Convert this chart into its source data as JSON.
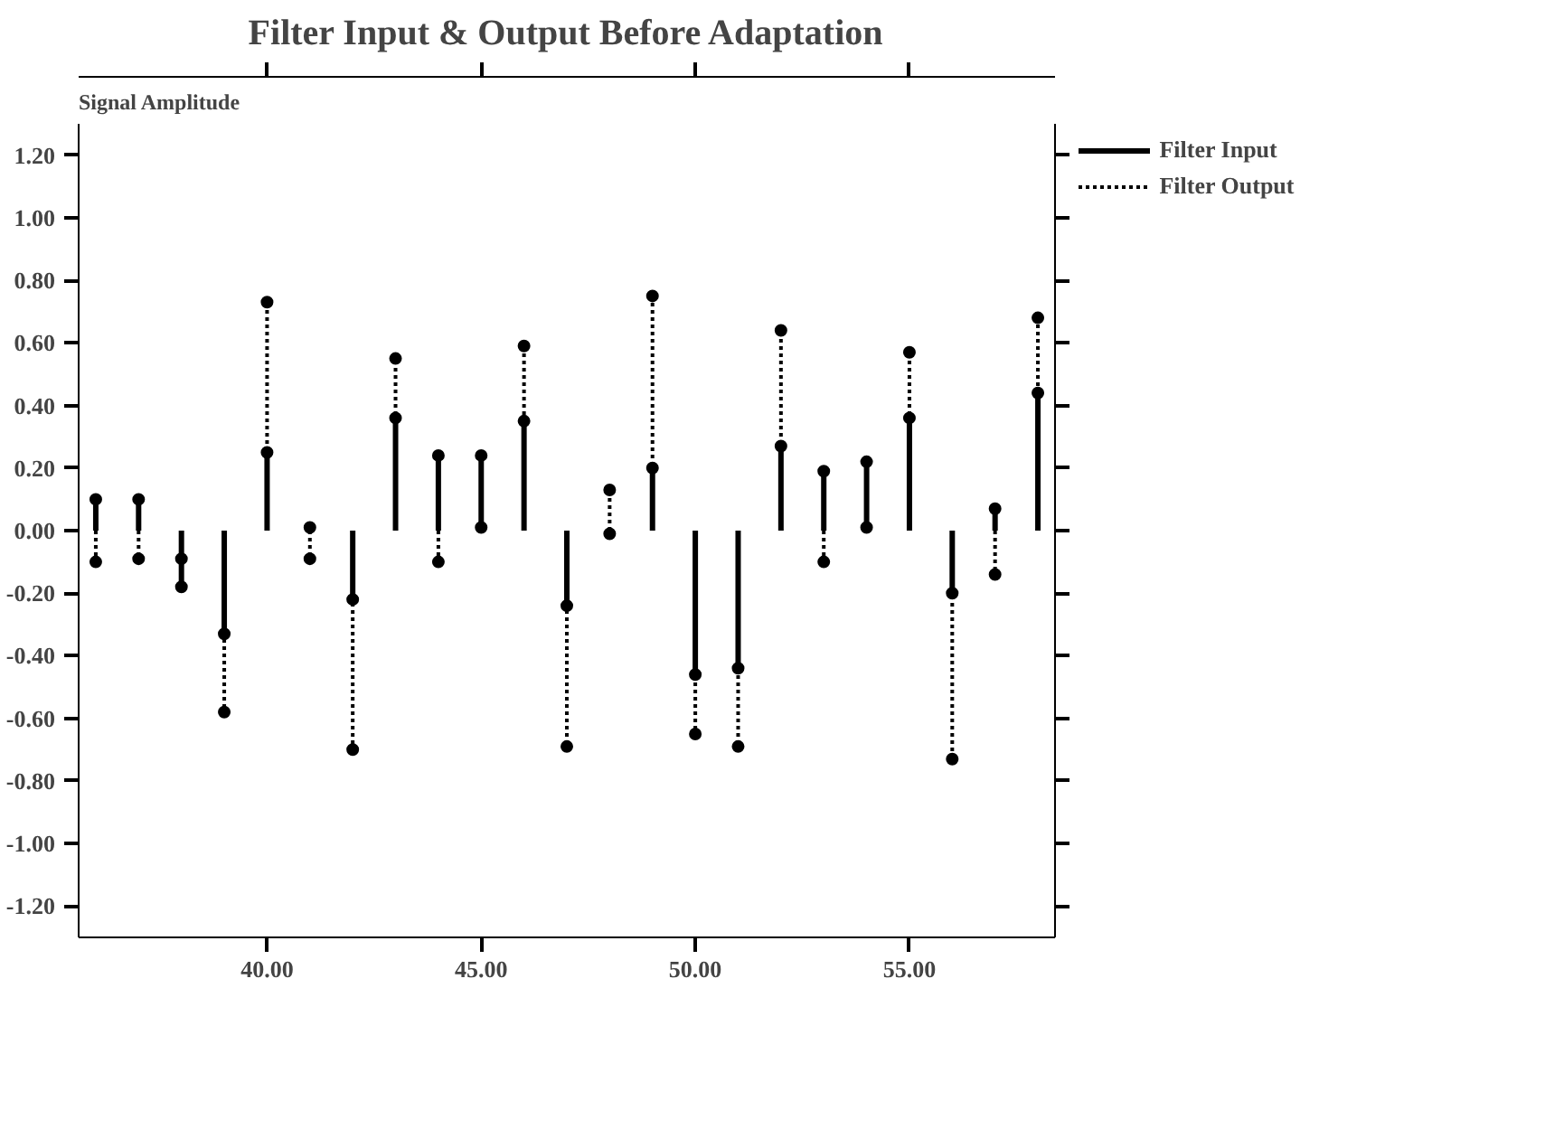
{
  "chart_data": {
    "type": "lollipop",
    "title": "Filter Input & Output Before Adaptation",
    "ylabel": "Signal Amplitude",
    "x": [
      36,
      37,
      38,
      39,
      40,
      41,
      42,
      43,
      44,
      45,
      46,
      47,
      48,
      49,
      50,
      51,
      52,
      53,
      54,
      55,
      56,
      57,
      58
    ],
    "series": [
      {
        "name": "Filter Input",
        "color": "#000000",
        "line_style": "solid",
        "values": [
          0.1,
          0.1,
          -0.18,
          -0.33,
          0.25,
          0.01,
          -0.22,
          0.36,
          0.24,
          0.24,
          0.35,
          -0.24,
          -0.01,
          0.2,
          -0.46,
          -0.44,
          0.27,
          0.19,
          0.22,
          0.36,
          -0.2,
          0.07,
          0.44
        ]
      },
      {
        "name": "Filter Output",
        "color": "#000000",
        "line_style": "dotted",
        "values": [
          -0.1,
          -0.09,
          -0.09,
          -0.58,
          0.73,
          -0.09,
          -0.7,
          0.55,
          -0.1,
          0.01,
          0.59,
          -0.69,
          0.13,
          0.75,
          -0.65,
          -0.69,
          0.64,
          -0.1,
          0.01,
          0.57,
          -0.73,
          -0.14,
          0.68
        ]
      }
    ],
    "marker": "circle",
    "xlim": [
      35.6,
      58.4
    ],
    "ylim": [
      -1.3,
      1.3
    ],
    "xticks": [
      {
        "value": 40,
        "label": "40.00"
      },
      {
        "value": 45,
        "label": "45.00"
      },
      {
        "value": 50,
        "label": "50.00"
      },
      {
        "value": 55,
        "label": "55.00"
      }
    ],
    "yticks": [
      {
        "value": -1.2,
        "label": "-1.20"
      },
      {
        "value": -1.0,
        "label": "-1.00"
      },
      {
        "value": -0.8,
        "label": "-0.80"
      },
      {
        "value": -0.6,
        "label": "-0.60"
      },
      {
        "value": -0.4,
        "label": "-0.40"
      },
      {
        "value": -0.2,
        "label": "-0.20"
      },
      {
        "value": 0,
        "label": "0.00"
      },
      {
        "value": 0.2,
        "label": "0.20"
      },
      {
        "value": 0.4,
        "label": "0.40"
      },
      {
        "value": 0.6,
        "label": "0.60"
      },
      {
        "value": 0.8,
        "label": "0.80"
      },
      {
        "value": 1.0,
        "label": "1.00"
      },
      {
        "value": 1.2,
        "label": "1.20"
      }
    ],
    "legend": "top right",
    "grid": false
  }
}
